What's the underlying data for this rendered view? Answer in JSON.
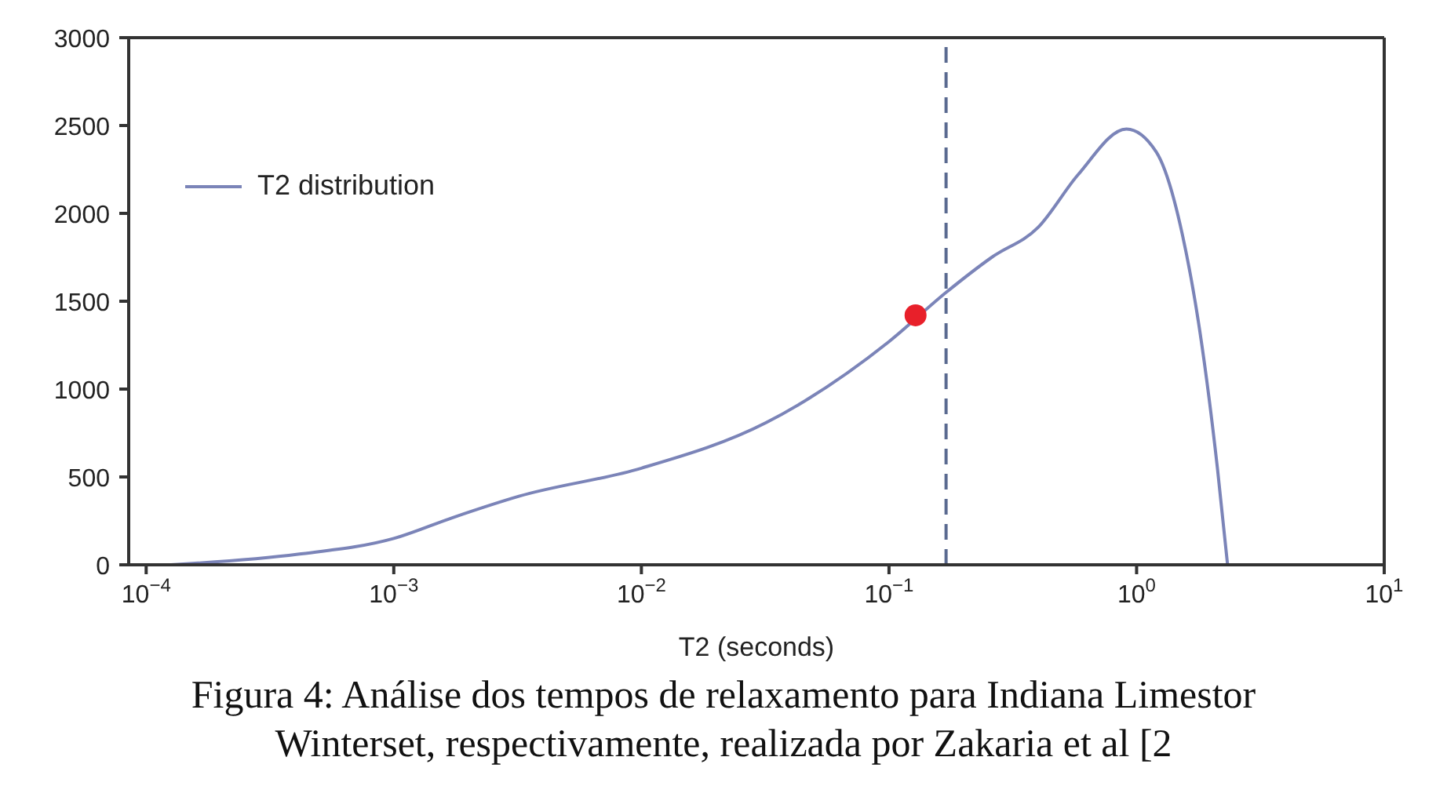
{
  "chart_data": {
    "type": "line",
    "xlabel": "T2 (seconds)",
    "log": "x",
    "xlim": [
      8.5e-05,
      10
    ],
    "xticks": [
      {
        "value": 0.0001,
        "label": "10$^{−4}$"
      },
      {
        "value": 0.001,
        "label": "10$^{−3}$"
      },
      {
        "value": 0.01,
        "label": "10$^{−2}$"
      },
      {
        "value": 0.1,
        "label": "10$^{−1}$"
      },
      {
        "value": 1,
        "label": "10$^{0}$"
      },
      {
        "value": 10,
        "label": "10$^{1}$"
      }
    ],
    "ylim": [
      0,
      3000
    ],
    "yticks": [
      0,
      500,
      1000,
      1500,
      2000,
      2500,
      3000
    ],
    "grid": false,
    "legend": "top left",
    "marker": "none",
    "line_style": "solid",
    "series": [
      {
        "name": "T2 distribution",
        "color": "#7b84b8",
        "x": [
          0.000126,
          0.00041,
          0.001,
          0.00174,
          0.0032,
          0.01,
          0.032,
          0.1,
          0.17,
          0.26,
          0.4,
          0.58,
          0.91,
          1.2,
          1.53,
          1.8,
          2.12,
          2.33
        ],
        "values": [
          0,
          60,
          150,
          270,
          390,
          550,
          810,
          1270,
          1550,
          1750,
          1920,
          2220,
          2480,
          2350,
          1880,
          1330,
          550,
          0
        ]
      },
      {
        "type": "scatter",
        "color": "#e8202a",
        "marker": "circle",
        "x": [
          0.128
        ],
        "values": [
          1420
        ]
      }
    ],
    "ref_lines": [
      {
        "axis": "x",
        "value": 0.17,
        "color": "#5a6a90",
        "line_style": "dashed"
      }
    ],
    "annotations": [
      "Figura 4: Análise dos tempos de relaxamento  para Indiana Limestor",
      "Winterset, respectivamente, realizada por Zakaria et al [2"
    ]
  }
}
